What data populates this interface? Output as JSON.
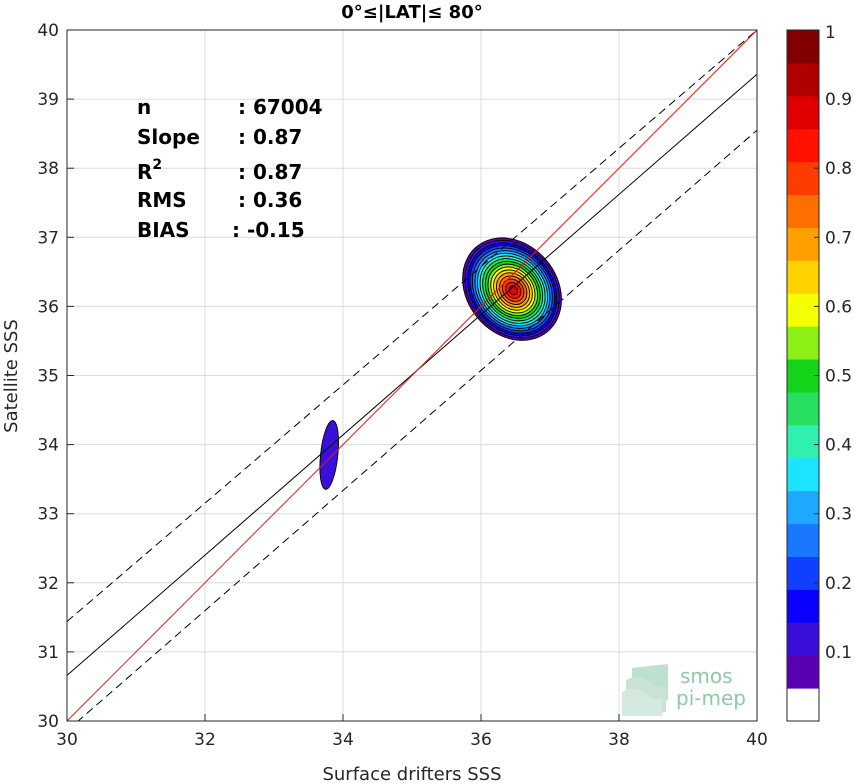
{
  "chart_data": {
    "type": "scatter",
    "subtype": "density-contour",
    "title": "0°≤|LAT|≤ 80°",
    "xlabel": "Surface drifters SSS",
    "ylabel": "Satellite SSS",
    "xlim": [
      30,
      40
    ],
    "ylim": [
      30,
      40
    ],
    "xticks": [
      30,
      32,
      34,
      36,
      38,
      40
    ],
    "yticks": [
      30,
      31,
      32,
      33,
      34,
      35,
      36,
      37,
      38,
      39,
      40
    ],
    "grid": true,
    "stats": [
      {
        "label": "n",
        "value": ": 67004"
      },
      {
        "label": "Slope",
        "value": ": 0.87"
      },
      {
        "label": "R",
        "sup": "2",
        "value": ": 0.87"
      },
      {
        "label": "RMS",
        "value": ": 0.36"
      },
      {
        "label": "BIAS",
        "value": ": -0.15"
      }
    ],
    "lines": {
      "identity": {
        "slope": 1,
        "intercept": 0,
        "color": "#e8180c"
      },
      "fit": {
        "slope": 0.87,
        "intercept_at_x30": 30.66,
        "color": "#000000"
      },
      "bounds": [
        {
          "y_at_x30": 31.44,
          "y_at_x40": 40.0,
          "style": "dashed"
        },
        {
          "y_at_x30": 29.86,
          "y_at_x40": 38.55,
          "style": "dashed"
        }
      ]
    },
    "clusters": [
      {
        "center_x": 36.45,
        "center_y": 36.25,
        "x_range": [
          35.6,
          36.9
        ],
        "y_range": [
          35.4,
          37.0
        ],
        "peak_level": 1.0
      },
      {
        "center_x": 33.8,
        "center_y": 33.85,
        "x_range": [
          33.7,
          33.95
        ],
        "y_range": [
          33.4,
          34.4
        ],
        "peak_level": 0.1
      }
    ],
    "colorbar": {
      "ticks": [
        "0.1",
        "0.2",
        "0.3",
        "0.4",
        "0.5",
        "0.6",
        "0.7",
        "0.8",
        "0.9",
        "1"
      ],
      "colors": [
        "#ffffff",
        "#5a00b4",
        "#3a10d8",
        "#0a00ff",
        "#0f40ff",
        "#1a78ff",
        "#1fa8ff",
        "#1ae4ff",
        "#30f0b0",
        "#28e060",
        "#14d41a",
        "#8cf014",
        "#f6ff00",
        "#ffd200",
        "#ffa000",
        "#ff6e00",
        "#ff3c00",
        "#ff1000",
        "#e00000",
        "#b00000",
        "#800000"
      ]
    }
  },
  "logo": {
    "line1": "smos",
    "line2": "pi-mep"
  }
}
